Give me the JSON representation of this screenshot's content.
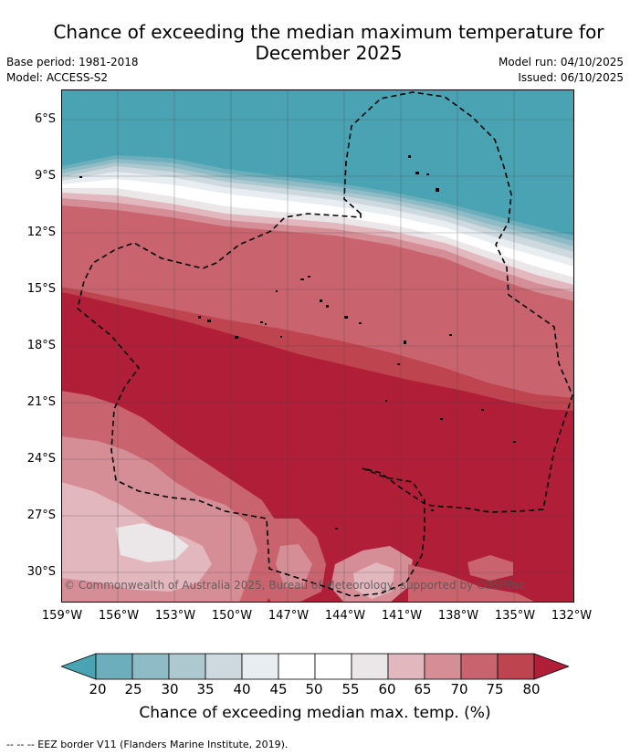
{
  "title": {
    "line1": "Chance of exceeding the median maximum temperature for",
    "line2": "December 2025"
  },
  "meta_left": {
    "base_period": "Base period: 1981-2018",
    "model": "Model: ACCESS-S2"
  },
  "meta_right": {
    "model_run": "Model run: 04/10/2025",
    "issued": "Issued: 06/10/2025"
  },
  "map": {
    "latitude_labels": [
      "6°S",
      "9°S",
      "12°S",
      "15°S",
      "18°S",
      "21°S",
      "24°S",
      "27°S",
      "30°S"
    ],
    "longitude_labels": [
      "159°W",
      "156°W",
      "153°W",
      "150°W",
      "147°W",
      "144°W",
      "141°W",
      "138°W",
      "135°W",
      "132°W"
    ],
    "copyright": "© Commonwealth of Australia 2025, Bureau of Meteorology, supported by COSPPac"
  },
  "colorbar": {
    "ticks": [
      "20",
      "25",
      "30",
      "35",
      "40",
      "45",
      "50",
      "55",
      "60",
      "65",
      "70",
      "75",
      "80"
    ],
    "colors": [
      "#4aa3b3",
      "#6caebb",
      "#8ebbc6",
      "#adc8ce",
      "#cdd9de",
      "#e7edf0",
      "#ffffff",
      "#ffffff",
      "#ebe7e8",
      "#e2b7bd",
      "#d58d96",
      "#c9646f",
      "#be444f",
      "#b01e38"
    ],
    "label": "Chance of exceeding median max. temp. (%)"
  },
  "footer": {
    "legend": "-- -- -- EEZ border V11 (Flanders Marine Institute, 2019)."
  }
}
